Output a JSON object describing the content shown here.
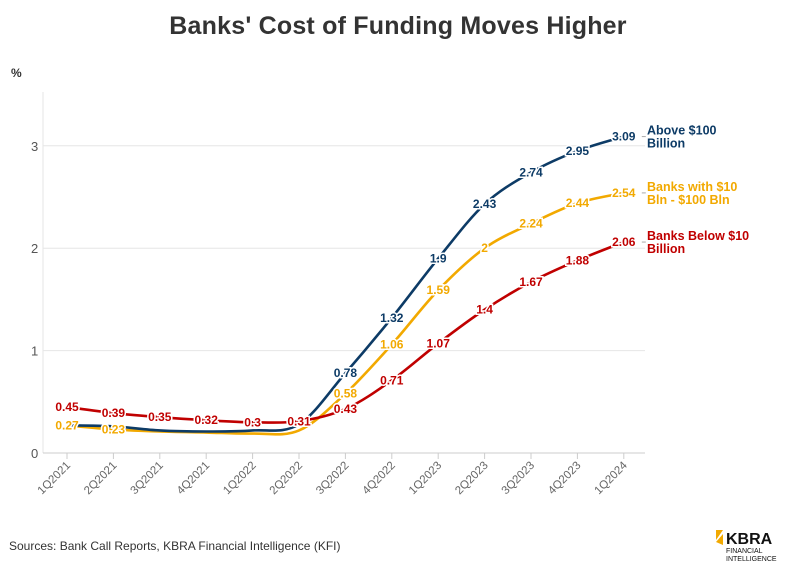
{
  "chart_data": {
    "type": "line",
    "title": "Banks' Cost of Funding Moves Higher",
    "ylabel": "%",
    "xlabel": "",
    "ylim": [
      0,
      3.5
    ],
    "yticks": [
      0,
      1,
      2,
      3
    ],
    "grid": true,
    "legend": "right end labels",
    "categories": [
      "1Q2021",
      "2Q2021",
      "3Q2021",
      "4Q2021",
      "1Q2022",
      "2Q2022",
      "3Q2022",
      "4Q2022",
      "1Q2023",
      "2Q2023",
      "3Q2023",
      "4Q2023",
      "1Q2024"
    ],
    "series": [
      {
        "name": "Above $100 Billion",
        "color": "#0d3b66",
        "values": [
          0.27,
          0.26,
          0.22,
          0.21,
          0.22,
          0.28,
          0.78,
          1.32,
          1.9,
          2.43,
          2.74,
          2.95,
          3.09
        ],
        "labels": [
          "",
          "",
          "",
          "",
          "",
          "",
          "0.78",
          "1.32",
          "1.9",
          "2.43",
          "2.74",
          "2.95",
          "3.09"
        ]
      },
      {
        "name": "Banks with $10 Bln - $100 Bln",
        "color": "#f2a900",
        "values": [
          0.27,
          0.23,
          0.21,
          0.2,
          0.19,
          0.22,
          0.58,
          1.06,
          1.59,
          2,
          2.24,
          2.44,
          2.54
        ],
        "labels": [
          "0.27",
          "0.23",
          "",
          "",
          "",
          "",
          "0.58",
          "1.06",
          "1.59",
          "2",
          "2.24",
          "2.44",
          "2.54"
        ]
      },
      {
        "name": "Banks Below $10 Billion",
        "color": "#c00000",
        "values": [
          0.45,
          0.39,
          0.35,
          0.32,
          0.3,
          0.31,
          0.43,
          0.71,
          1.07,
          1.4,
          1.67,
          1.88,
          2.06
        ],
        "labels": [
          "0.45",
          "0.39",
          "0.35",
          "0.32",
          "0.3",
          "0.31",
          "0.43",
          "0.71",
          "1.07",
          "1.4",
          "1.67",
          "1.88",
          "2.06"
        ]
      }
    ],
    "series_label_lines": [
      [
        "Above $100",
        "Billion"
      ],
      [
        "Banks with $10",
        "Bln - $100 Bln"
      ],
      [
        "Banks Below $10",
        "Billion"
      ]
    ]
  },
  "source": "Sources: Bank Call Reports, KBRA Financial Intelligence (KFI)",
  "logo": {
    "name": "KBRA",
    "sub1": "FINANCIAL",
    "sub2": "INTELLIGENCE"
  }
}
